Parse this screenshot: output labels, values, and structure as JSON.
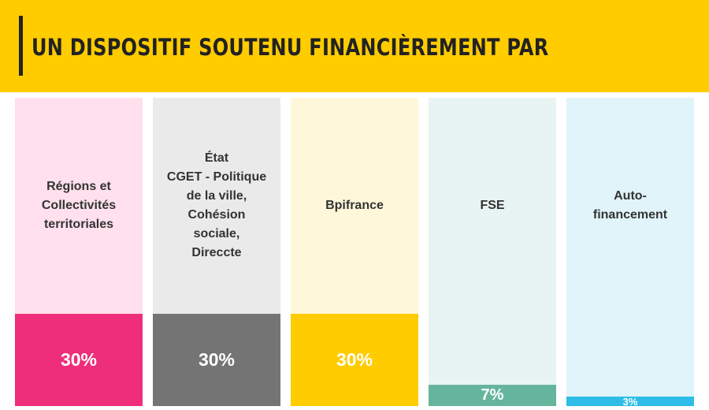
{
  "header": {
    "title": "UN DISPOSITIF SOUTENU FINANCIÈREMENT PAR",
    "background": "#FFCC00"
  },
  "chart_data": {
    "type": "bar",
    "title": "UN DISPOSITIF SOUTENU FINANCIÈREMENT PAR",
    "categories": [
      "Régions et\nCollectivités\nterritoriales",
      "État\nCGET - Politique\nde la ville,\nCohésion\nsociale,\nDireccte",
      "Bpifrance",
      "FSE",
      "Auto-\nfinancement"
    ],
    "values": [
      30,
      30,
      30,
      7,
      3
    ],
    "value_labels": [
      "30%",
      "30%",
      "30%",
      "7%",
      "3%"
    ],
    "unit": "%",
    "fill_colors": [
      "#EE2E7B",
      "#747474",
      "#FFCC00",
      "#65B59C",
      "#2DBDE6"
    ],
    "background_colors": [
      "#FFE0EC",
      "#EAEAEA",
      "#FFF7DA",
      "#E8F4F2",
      "#E0F4FA"
    ],
    "grid": false,
    "legend": "none"
  }
}
